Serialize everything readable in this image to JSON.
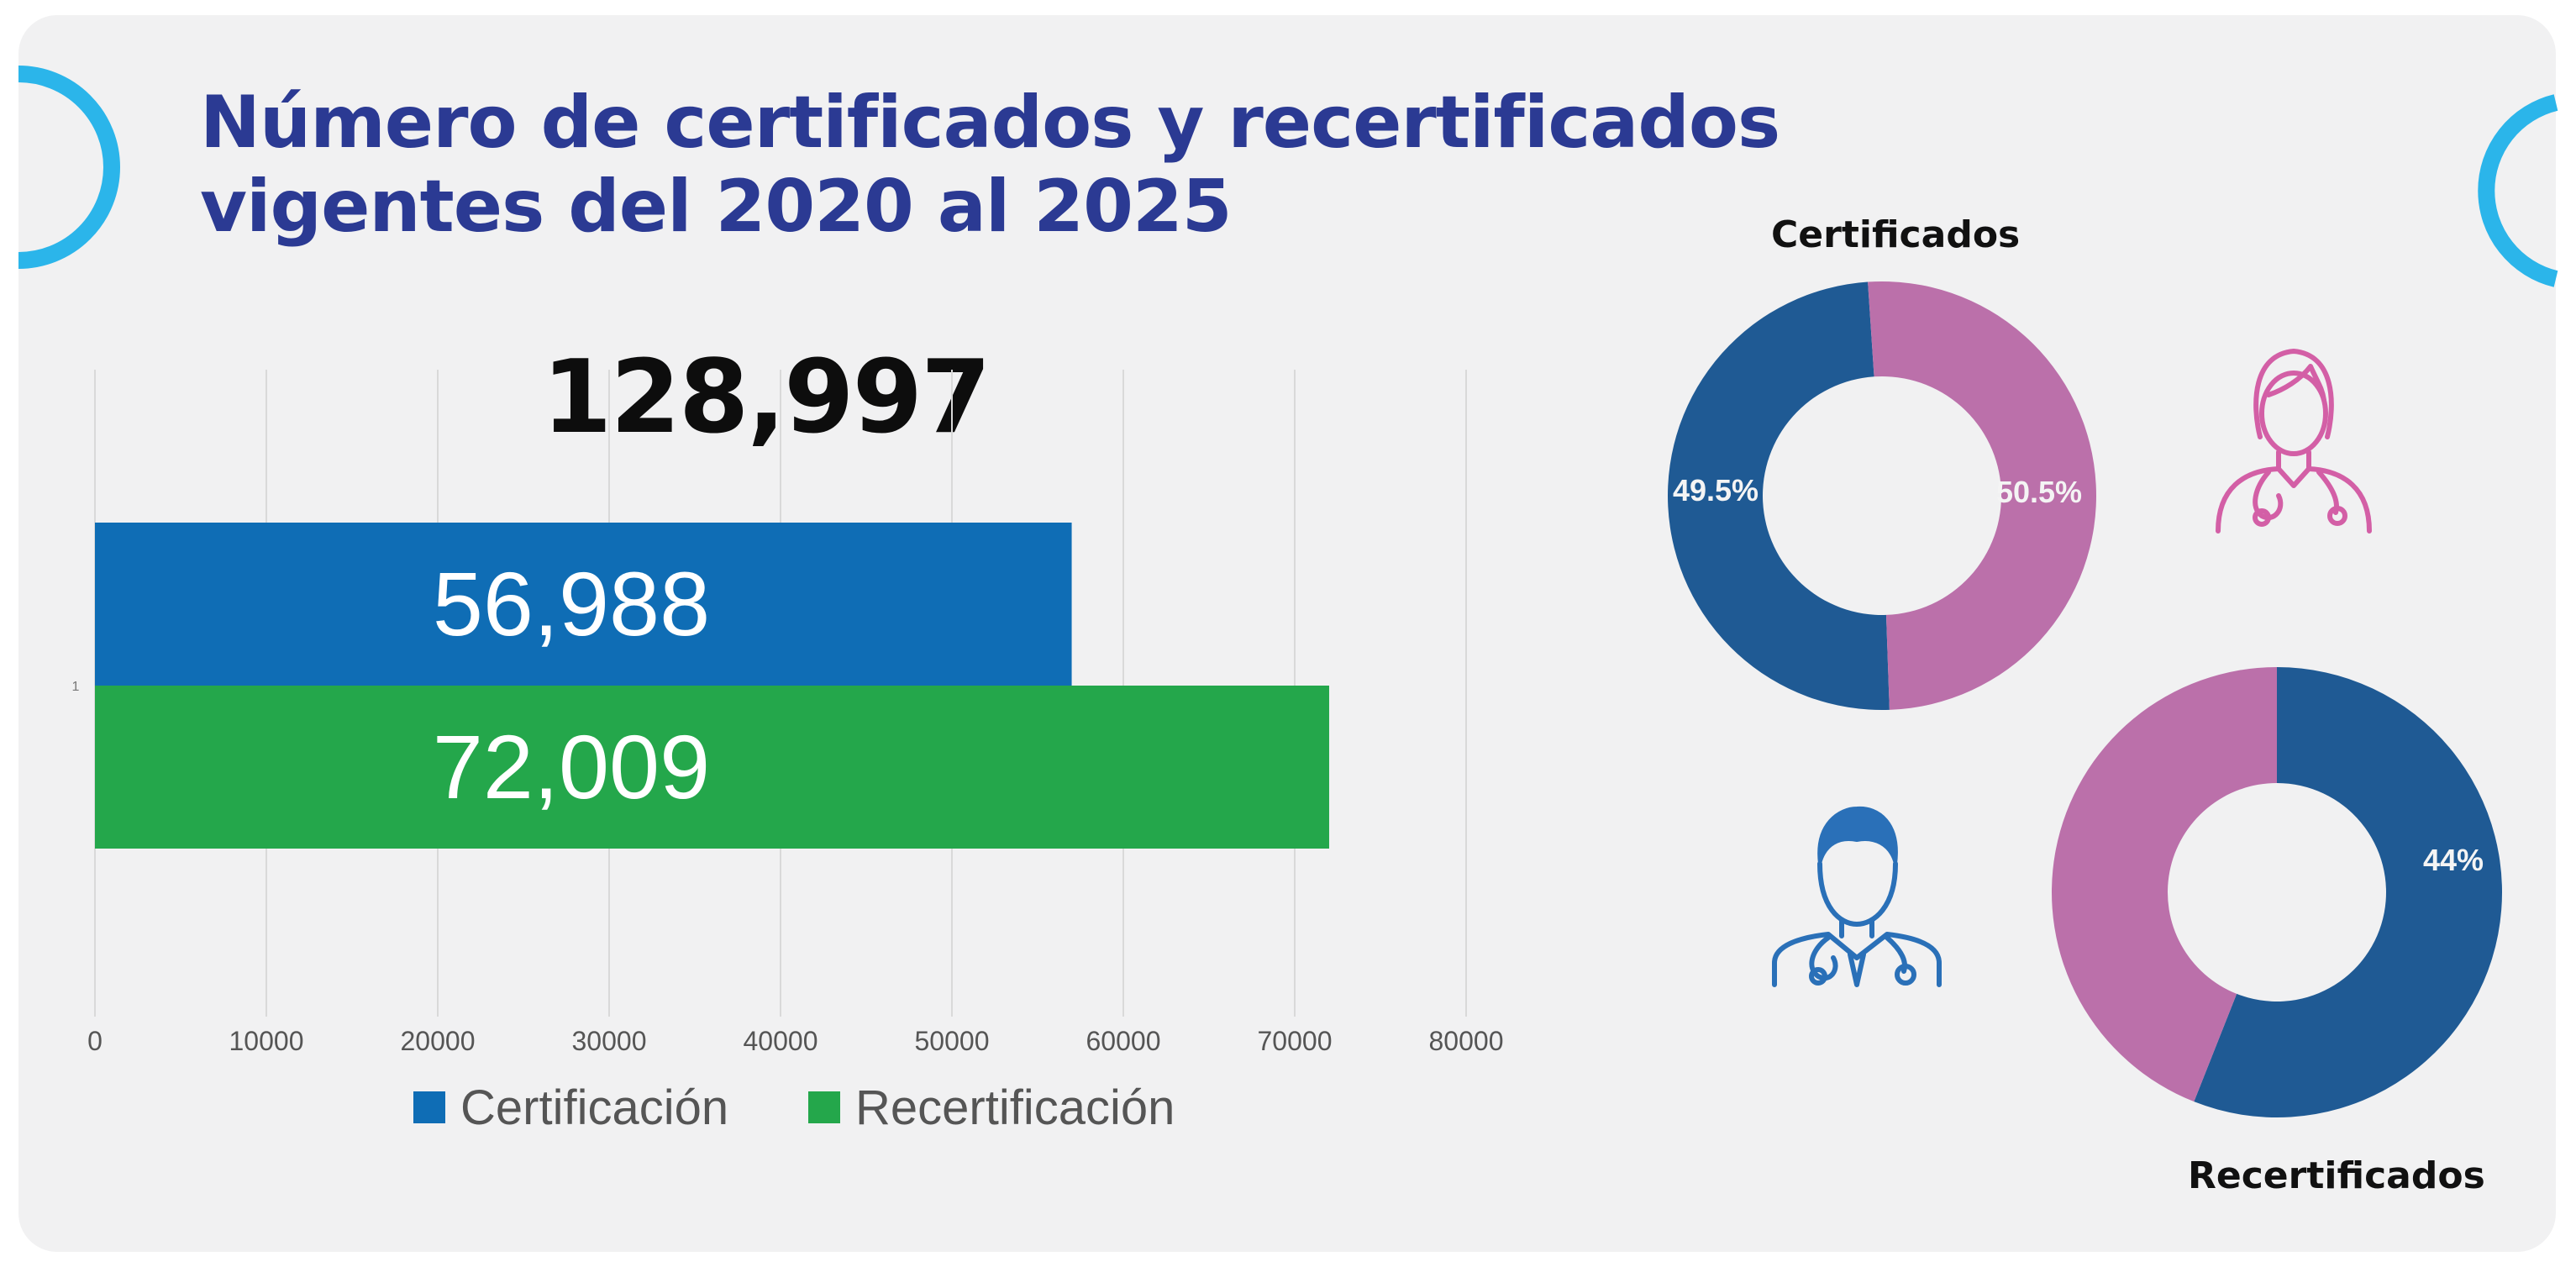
{
  "title": {
    "line1": "Número de certificados y recertificados",
    "line2": "vigentes del 2020 al 2025"
  },
  "colors": {
    "title": "#2b3a93",
    "accent_ring": "#2bb5ea",
    "certificacion": "#0f6db5",
    "recertificacion": "#24a74b",
    "male": "#1f5a94",
    "female": "#bb70aa"
  },
  "icons": [
    "female-doctor-icon",
    "male-doctor-icon"
  ],
  "chart_data": [
    {
      "type": "bar",
      "orientation": "horizontal",
      "total_label": "128,997",
      "categories": [
        "1"
      ],
      "series": [
        {
          "name": "Certificación",
          "values": [
            56988
          ],
          "label": "56,988",
          "color": "#0f6db5"
        },
        {
          "name": "Recertificación",
          "values": [
            72009
          ],
          "label": "72,009",
          "color": "#24a74b"
        }
      ],
      "xlim": [
        0,
        80000
      ],
      "xticks": [
        "0",
        "10000",
        "20000",
        "30000",
        "40000",
        "50000",
        "60000",
        "70000",
        "80000"
      ],
      "grid": true,
      "legend": "bottom"
    },
    {
      "type": "pie",
      "title": "Certificados",
      "slices": [
        {
          "label": "49.5%",
          "value": 49.5,
          "color": "#1f5a94"
        },
        {
          "label": "50.5%",
          "value": 50.5,
          "color": "#bb70aa"
        }
      ]
    },
    {
      "type": "pie",
      "title": "Recertificados",
      "slices": [
        {
          "label": "56%",
          "value": 56,
          "color": "#1f5a94"
        },
        {
          "label": "44%",
          "value": 44,
          "color": "#bb70aa"
        }
      ]
    }
  ]
}
